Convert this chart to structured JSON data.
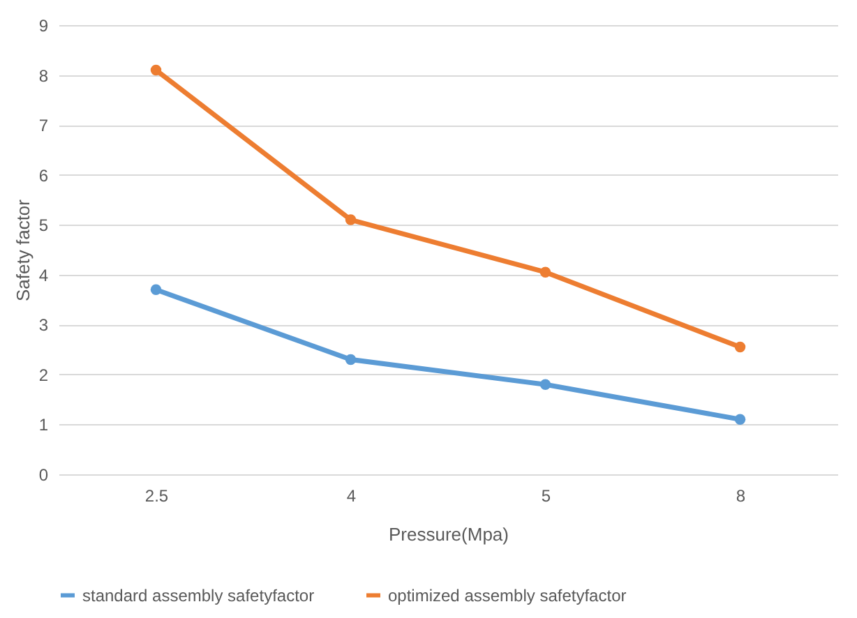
{
  "chart_data": {
    "type": "line",
    "xlabel": "Pressure(Mpa)",
    "ylabel": "Safety factor",
    "categories": [
      "2.5",
      "4",
      "5",
      "8"
    ],
    "series": [
      {
        "name": "standard assembly safetyfactor",
        "color": "#5b9bd5",
        "values": [
          3.7,
          2.3,
          1.8,
          1.1
        ]
      },
      {
        "name": "optimized assembly safetyfactor",
        "color": "#ed7d31",
        "values": [
          8.1,
          5.1,
          4.05,
          2.55
        ]
      }
    ],
    "ylim": [
      0,
      9
    ],
    "yticks": [
      0,
      1,
      2,
      3,
      4,
      5,
      6,
      7,
      8,
      9
    ],
    "grid": "y",
    "legend": "bottom",
    "marker": "circle",
    "line_style": "solid"
  }
}
